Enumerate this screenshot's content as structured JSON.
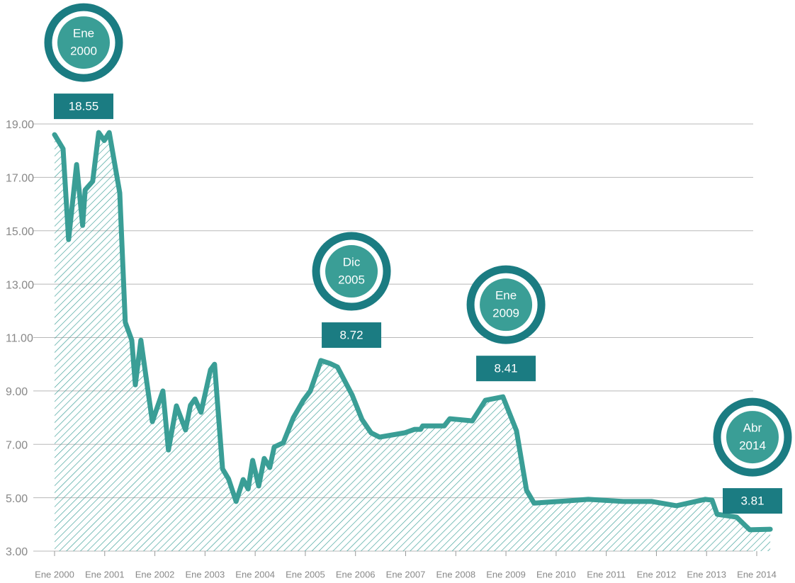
{
  "chart_data": {
    "type": "line",
    "x": [
      2000.0,
      2000.17,
      2000.28,
      2000.44,
      2000.56,
      2000.61,
      2000.76,
      2000.88,
      2000.99,
      2001.09,
      2001.3,
      2001.41,
      2001.54,
      2001.61,
      2001.72,
      2001.95,
      2002.16,
      2002.27,
      2002.43,
      2002.61,
      2002.71,
      2002.8,
      2002.92,
      2003.11,
      2003.19,
      2003.35,
      2003.47,
      2003.62,
      2003.76,
      2003.86,
      2003.95,
      2004.07,
      2004.18,
      2004.29,
      2004.38,
      2004.56,
      2004.76,
      2004.96,
      2005.1,
      2005.31,
      2005.49,
      2005.64,
      2005.93,
      2006.13,
      2006.31,
      2006.48,
      2006.98,
      2007.18,
      2007.3,
      2007.34,
      2007.77,
      2007.88,
      2008.33,
      2008.59,
      2008.94,
      2009.21,
      2009.41,
      2009.56,
      2010.21,
      2010.64,
      2011.34,
      2011.91,
      2012.4,
      2012.97,
      2013.11,
      2013.21,
      2013.6,
      2013.86,
      2014.27
    ],
    "series": [
      {
        "color": "#3a9e96",
        "values": [
          18.6,
          18.07,
          14.67,
          17.48,
          15.2,
          16.53,
          16.85,
          18.68,
          18.38,
          18.68,
          16.42,
          11.57,
          10.9,
          9.23,
          10.9,
          7.85,
          9.0,
          6.79,
          8.44,
          7.54,
          8.46,
          8.7,
          8.2,
          9.79,
          10.0,
          6.08,
          5.7,
          4.86,
          5.68,
          5.33,
          6.4,
          5.44,
          6.47,
          6.13,
          6.9,
          7.06,
          7.99,
          8.65,
          9.0,
          10.14,
          10.03,
          9.9,
          8.86,
          7.93,
          7.43,
          7.27,
          7.43,
          7.56,
          7.56,
          7.69,
          7.69,
          7.96,
          7.88,
          8.65,
          8.78,
          7.51,
          5.28,
          4.8,
          4.88,
          4.94,
          4.86,
          4.86,
          4.7,
          4.94,
          4.91,
          4.38,
          4.27,
          3.8,
          3.82
        ]
      }
    ],
    "xlim": [
      2000,
      2014
    ],
    "xticks": [
      {
        "value": 2000,
        "label": "Ene 2000"
      },
      {
        "value": 2001,
        "label": "Ene 2001"
      },
      {
        "value": 2002,
        "label": "Ene 2002"
      },
      {
        "value": 2003,
        "label": "Ene 2003"
      },
      {
        "value": 2004,
        "label": "Ene 2004"
      },
      {
        "value": 2005,
        "label": "Ene 2005"
      },
      {
        "value": 2006,
        "label": "Ene 2006"
      },
      {
        "value": 2007,
        "label": "Ene 2007"
      },
      {
        "value": 2008,
        "label": "Ene 2008"
      },
      {
        "value": 2009,
        "label": "Ene 2009"
      },
      {
        "value": 2010,
        "label": "Ene 2010"
      },
      {
        "value": 2011,
        "label": "Ene 2011"
      },
      {
        "value": 2012,
        "label": "Ene 2012"
      },
      {
        "value": 2013,
        "label": "Ene 2013"
      },
      {
        "value": 2014,
        "label": "Ene 2014"
      }
    ],
    "ylim": [
      3,
      19
    ],
    "yticks": [
      {
        "value": 3,
        "label": "3.00"
      },
      {
        "value": 5,
        "label": "5.00"
      },
      {
        "value": 7,
        "label": "7.00"
      },
      {
        "value": 9,
        "label": "9.00"
      },
      {
        "value": 11,
        "label": "11.00"
      },
      {
        "value": 13,
        "label": "13.00"
      },
      {
        "value": 15,
        "label": "15.00"
      },
      {
        "value": 17,
        "label": "17.00"
      },
      {
        "value": 19,
        "label": "19.00"
      }
    ],
    "grid": true,
    "annotations": [
      {
        "month": "Ene",
        "year": "2000",
        "x": 2000.0,
        "value": 18.55
      },
      {
        "month": "Dic",
        "year": "2005",
        "x": 2005.92,
        "value": 8.72
      },
      {
        "month": "Ene",
        "year": "2009",
        "x": 2009.0,
        "value": 8.41
      },
      {
        "month": "Abr",
        "year": "2014",
        "x": 2014.25,
        "value": 3.81
      }
    ]
  }
}
